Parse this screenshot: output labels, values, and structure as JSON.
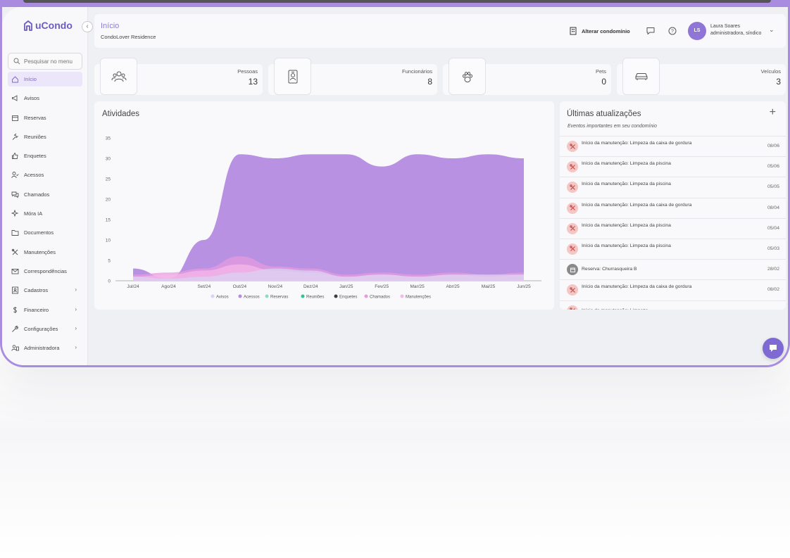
{
  "brand": {
    "name": "uCondo"
  },
  "sidebar": {
    "search_placeholder": "Pesquisar no menu",
    "items": [
      {
        "label": "Início",
        "icon": "home-icon",
        "active": true
      },
      {
        "label": "Avisos",
        "icon": "megaphone-icon"
      },
      {
        "label": "Reservas",
        "icon": "calendar-icon"
      },
      {
        "label": "Reuniões",
        "icon": "gavel-icon"
      },
      {
        "label": "Enquetes",
        "icon": "thumbs-up-icon"
      },
      {
        "label": "Acessos",
        "icon": "user-check-icon"
      },
      {
        "label": "Chamados",
        "icon": "chat-bubbles-icon"
      },
      {
        "label": "Móra IA",
        "icon": "sparkles-icon"
      },
      {
        "label": "Documentos",
        "icon": "folder-icon"
      },
      {
        "label": "Manutenções",
        "icon": "tools-icon"
      },
      {
        "label": "Correspondências",
        "icon": "mail-icon"
      },
      {
        "label": "Cadastros",
        "icon": "id-card-icon",
        "has_submenu": true
      },
      {
        "label": "Financeiro",
        "icon": "dollar-icon",
        "has_submenu": true
      },
      {
        "label": "Configurações",
        "icon": "wrench-icon",
        "has_submenu": true
      },
      {
        "label": "Administradora",
        "icon": "users-icon",
        "has_submenu": true
      }
    ]
  },
  "header": {
    "title": "Início",
    "subtitle": "CondoLover Residence",
    "switch_condo_label": "Alterar condomínio",
    "user": {
      "initials": "LS",
      "name": "Laura Soares",
      "role": "administradora, síndico"
    }
  },
  "stats": [
    {
      "label": "Pessoas",
      "value": "13",
      "icon": "people-icon"
    },
    {
      "label": "Funcionários",
      "value": "8",
      "icon": "badge-icon"
    },
    {
      "label": "Pets",
      "value": "0",
      "icon": "paw-icon"
    },
    {
      "label": "Veículos",
      "value": "3",
      "icon": "car-icon"
    }
  ],
  "activity": {
    "title": "Atividades"
  },
  "chart_data": {
    "type": "area",
    "title": "Atividades",
    "categories": [
      "Jul/24",
      "Ago/24",
      "Set/24",
      "Out/24",
      "Nov/24",
      "Dez/24",
      "Jan/25",
      "Fev/25",
      "Mar/25",
      "Abr/25",
      "Mai/25",
      "Jun/25"
    ],
    "yticks": [
      0,
      5,
      10,
      15,
      20,
      25,
      30,
      35
    ],
    "ylim": [
      0,
      35
    ],
    "grid": false,
    "legend_placement": "bottom",
    "series": [
      {
        "name": "Avisos",
        "color": "#d9d2f2",
        "values": [
          1,
          0.5,
          1,
          2,
          3,
          2.5,
          1,
          1.5,
          1,
          1.5,
          1.5,
          1.5
        ]
      },
      {
        "name": "Acessos",
        "color": "#b48be0",
        "values": [
          3,
          0.5,
          10,
          31,
          30,
          31,
          31,
          28,
          31,
          30,
          31,
          30
        ]
      },
      {
        "name": "Reservas",
        "color": "#8fdcc0",
        "values": [
          0,
          0,
          0,
          0,
          0,
          0,
          0,
          0,
          0,
          0,
          0,
          0
        ]
      },
      {
        "name": "Reuniões",
        "color": "#2ec48f",
        "values": [
          0,
          0,
          0,
          0,
          0,
          0,
          0,
          0,
          0,
          0,
          0,
          0
        ]
      },
      {
        "name": "Enquetes",
        "color": "#3d3d3d",
        "values": [
          0,
          0,
          0,
          0,
          0,
          0,
          0,
          0,
          0,
          0,
          0,
          0
        ]
      },
      {
        "name": "Chamados",
        "color": "#e59be0",
        "values": [
          1.5,
          2,
          3,
          6,
          3.5,
          3,
          1.5,
          2,
          1.5,
          2,
          1.5,
          2
        ]
      },
      {
        "name": "Manutenções",
        "color": "#f5b8e8",
        "values": [
          1,
          1.5,
          2.5,
          4,
          2.5,
          2,
          1,
          1.5,
          1,
          1.5,
          1,
          1.5
        ]
      }
    ]
  },
  "updates": {
    "title": "Últimas atualizações",
    "subtitle": "Eventos importantes em seu condomínio",
    "add_label": "+",
    "items": [
      {
        "text": "Início da manutenção: Limpeza da caixa de gordura",
        "date": "08/06",
        "icon": "tools-icon"
      },
      {
        "text": "Início da manutenção: Limpeza da piscina",
        "date": "05/06",
        "icon": "tools-icon"
      },
      {
        "text": "Início da manutenção: Limpeza da piscina",
        "date": "05/05",
        "icon": "tools-icon"
      },
      {
        "text": "Início da manutenção: Limpeza da caixa de gordura",
        "date": "08/04",
        "icon": "tools-icon"
      },
      {
        "text": "Início da manutenção: Limpeza da piscina",
        "date": "05/04",
        "icon": "tools-icon"
      },
      {
        "text": "Início da manutenção: Limpeza da piscina",
        "date": "05/03",
        "icon": "tools-icon"
      },
      {
        "text": "Reserva: Churrasqueira B",
        "date": "28/02",
        "icon": "calendar-icon"
      },
      {
        "text": "Início da manutenção: Limpeza da caixa de gordura",
        "date": "08/02",
        "icon": "tools-icon"
      },
      {
        "text": "Início da manutenção: Limpeza",
        "date": "",
        "icon": "tools-icon"
      }
    ]
  },
  "colors": {
    "accent": "#8d7bd8",
    "frame": "#a98ce0",
    "fab": "#7e6ad2"
  }
}
